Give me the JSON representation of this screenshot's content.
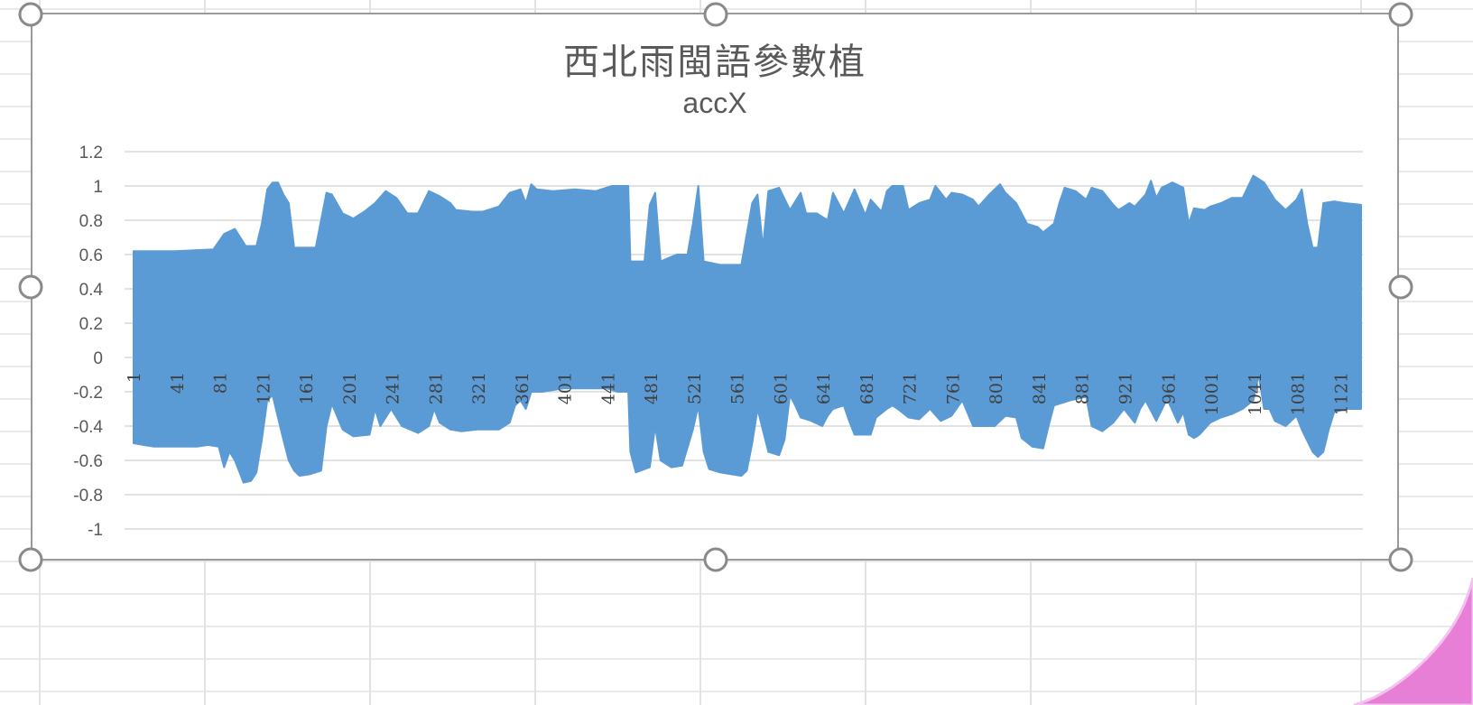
{
  "chart_data": {
    "type": "area",
    "title": "西北雨閩語參數植",
    "subtitle": "accX",
    "xlabel": "",
    "ylabel": "",
    "ylim": [
      -1,
      1.2
    ],
    "y_ticks": [
      "1.2",
      "1",
      "0.8",
      "0.6",
      "0.4",
      "0.2",
      "0",
      "-0.2",
      "-0.4",
      "-0.6",
      "-0.8",
      "-1"
    ],
    "y_tick_values": [
      1.2,
      1,
      0.8,
      0.6,
      0.4,
      0.2,
      0,
      -0.2,
      -0.4,
      -0.6,
      -0.8,
      -1
    ],
    "x_range": [
      1,
      1140
    ],
    "x_ticks": [
      "1",
      "41",
      "81",
      "121",
      "161",
      "201",
      "241",
      "281",
      "321",
      "361",
      "401",
      "441",
      "481",
      "521",
      "561",
      "601",
      "641",
      "681",
      "721",
      "761",
      "801",
      "841",
      "881",
      "921",
      "961",
      "1001",
      "1041",
      "1081",
      "1121"
    ],
    "grid": "horizontal",
    "legend": "none",
    "series": [
      {
        "color": "#5b9bd5",
        "upper_envelope": [
          [
            1,
            0.62
          ],
          [
            40,
            0.62
          ],
          [
            75,
            0.63
          ],
          [
            85,
            0.72
          ],
          [
            95,
            0.75
          ],
          [
            105,
            0.65
          ],
          [
            115,
            0.65
          ],
          [
            120,
            0.78
          ],
          [
            125,
            0.98
          ],
          [
            130,
            1.02
          ],
          [
            135,
            1.02
          ],
          [
            140,
            0.95
          ],
          [
            145,
            0.9
          ],
          [
            150,
            0.64
          ],
          [
            170,
            0.64
          ],
          [
            180,
            0.96
          ],
          [
            185,
            0.95
          ],
          [
            195,
            0.84
          ],
          [
            205,
            0.81
          ],
          [
            215,
            0.85
          ],
          [
            225,
            0.9
          ],
          [
            235,
            0.97
          ],
          [
            245,
            0.93
          ],
          [
            255,
            0.84
          ],
          [
            265,
            0.84
          ],
          [
            275,
            0.97
          ],
          [
            285,
            0.94
          ],
          [
            295,
            0.9
          ],
          [
            300,
            0.86
          ],
          [
            315,
            0.85
          ],
          [
            325,
            0.85
          ],
          [
            340,
            0.88
          ],
          [
            350,
            0.96
          ],
          [
            360,
            0.98
          ],
          [
            365,
            0.9
          ],
          [
            370,
            1.01
          ],
          [
            375,
            0.98
          ],
          [
            390,
            0.97
          ],
          [
            410,
            0.98
          ],
          [
            430,
            0.97
          ],
          [
            445,
            1.0
          ],
          [
            460,
            1.0
          ],
          [
            462,
            0.56
          ],
          [
            475,
            0.56
          ],
          [
            480,
            0.89
          ],
          [
            485,
            0.96
          ],
          [
            490,
            0.56
          ],
          [
            505,
            0.6
          ],
          [
            515,
            0.6
          ],
          [
            520,
            0.78
          ],
          [
            525,
            1.0
          ],
          [
            530,
            0.56
          ],
          [
            545,
            0.54
          ],
          [
            560,
            0.54
          ],
          [
            565,
            0.54
          ],
          [
            575,
            0.9
          ],
          [
            580,
            0.95
          ],
          [
            585,
            0.64
          ],
          [
            590,
            0.97
          ],
          [
            600,
            0.99
          ],
          [
            610,
            0.86
          ],
          [
            620,
            0.96
          ],
          [
            625,
            0.84
          ],
          [
            635,
            0.84
          ],
          [
            640,
            0.82
          ],
          [
            645,
            0.8
          ],
          [
            650,
            0.96
          ],
          [
            660,
            0.84
          ],
          [
            670,
            0.98
          ],
          [
            680,
            0.83
          ],
          [
            685,
            0.92
          ],
          [
            695,
            0.85
          ],
          [
            700,
            0.97
          ],
          [
            705,
            1.0
          ],
          [
            715,
            1.0
          ],
          [
            720,
            0.86
          ],
          [
            730,
            0.9
          ],
          [
            740,
            0.92
          ],
          [
            745,
            1.0
          ],
          [
            755,
            0.92
          ],
          [
            760,
            0.96
          ],
          [
            770,
            0.95
          ],
          [
            780,
            0.92
          ],
          [
            785,
            0.88
          ],
          [
            795,
            0.95
          ],
          [
            805,
            1.01
          ],
          [
            810,
            0.96
          ],
          [
            820,
            0.9
          ],
          [
            830,
            0.78
          ],
          [
            840,
            0.76
          ],
          [
            845,
            0.73
          ],
          [
            855,
            0.78
          ],
          [
            860,
            0.9
          ],
          [
            865,
            0.99
          ],
          [
            875,
            0.97
          ],
          [
            885,
            0.92
          ],
          [
            890,
            0.99
          ],
          [
            900,
            0.97
          ],
          [
            910,
            0.89
          ],
          [
            915,
            0.86
          ],
          [
            925,
            0.9
          ],
          [
            930,
            0.88
          ],
          [
            940,
            0.95
          ],
          [
            945,
            1.03
          ],
          [
            950,
            0.93
          ],
          [
            955,
            0.99
          ],
          [
            965,
            1.02
          ],
          [
            975,
            0.99
          ],
          [
            980,
            0.78
          ],
          [
            985,
            0.87
          ],
          [
            995,
            0.86
          ],
          [
            1000,
            0.88
          ],
          [
            1010,
            0.9
          ],
          [
            1020,
            0.93
          ],
          [
            1030,
            0.93
          ],
          [
            1040,
            1.06
          ],
          [
            1050,
            1.02
          ],
          [
            1060,
            0.92
          ],
          [
            1070,
            0.86
          ],
          [
            1080,
            0.92
          ],
          [
            1085,
            0.98
          ],
          [
            1090,
            0.78
          ],
          [
            1095,
            0.64
          ],
          [
            1100,
            0.64
          ],
          [
            1105,
            0.9
          ],
          [
            1115,
            0.91
          ],
          [
            1125,
            0.9
          ],
          [
            1140,
            0.89
          ]
        ],
        "lower_envelope": [
          [
            1,
            -0.5
          ],
          [
            10,
            -0.51
          ],
          [
            20,
            -0.52
          ],
          [
            40,
            -0.52
          ],
          [
            60,
            -0.52
          ],
          [
            70,
            -0.51
          ],
          [
            80,
            -0.52
          ],
          [
            85,
            -0.64
          ],
          [
            90,
            -0.55
          ],
          [
            95,
            -0.6
          ],
          [
            100,
            -0.68
          ],
          [
            103,
            -0.73
          ],
          [
            110,
            -0.72
          ],
          [
            115,
            -0.67
          ],
          [
            120,
            -0.48
          ],
          [
            125,
            -0.25
          ],
          [
            130,
            -0.22
          ],
          [
            140,
            -0.48
          ],
          [
            145,
            -0.6
          ],
          [
            150,
            -0.66
          ],
          [
            155,
            -0.69
          ],
          [
            165,
            -0.68
          ],
          [
            175,
            -0.66
          ],
          [
            180,
            -0.4
          ],
          [
            185,
            -0.27
          ],
          [
            195,
            -0.42
          ],
          [
            205,
            -0.46
          ],
          [
            220,
            -0.45
          ],
          [
            225,
            -0.3
          ],
          [
            230,
            -0.4
          ],
          [
            240,
            -0.3
          ],
          [
            250,
            -0.4
          ],
          [
            265,
            -0.44
          ],
          [
            275,
            -0.4
          ],
          [
            280,
            -0.3
          ],
          [
            285,
            -0.38
          ],
          [
            295,
            -0.42
          ],
          [
            305,
            -0.43
          ],
          [
            320,
            -0.42
          ],
          [
            340,
            -0.42
          ],
          [
            350,
            -0.38
          ],
          [
            355,
            -0.28
          ],
          [
            360,
            -0.25
          ],
          [
            365,
            -0.3
          ],
          [
            370,
            -0.2
          ],
          [
            380,
            -0.2
          ],
          [
            400,
            -0.18
          ],
          [
            420,
            -0.18
          ],
          [
            440,
            -0.18
          ],
          [
            450,
            -0.2
          ],
          [
            460,
            -0.2
          ],
          [
            462,
            -0.55
          ],
          [
            467,
            -0.67
          ],
          [
            480,
            -0.64
          ],
          [
            485,
            -0.4
          ],
          [
            490,
            -0.6
          ],
          [
            500,
            -0.64
          ],
          [
            510,
            -0.63
          ],
          [
            520,
            -0.42
          ],
          [
            525,
            -0.28
          ],
          [
            530,
            -0.55
          ],
          [
            535,
            -0.65
          ],
          [
            545,
            -0.67
          ],
          [
            555,
            -0.68
          ],
          [
            565,
            -0.69
          ],
          [
            570,
            -0.66
          ],
          [
            575,
            -0.5
          ],
          [
            580,
            -0.3
          ],
          [
            590,
            -0.55
          ],
          [
            600,
            -0.57
          ],
          [
            605,
            -0.48
          ],
          [
            610,
            -0.22
          ],
          [
            615,
            -0.28
          ],
          [
            620,
            -0.35
          ],
          [
            630,
            -0.37
          ],
          [
            640,
            -0.4
          ],
          [
            645,
            -0.34
          ],
          [
            650,
            -0.3
          ],
          [
            660,
            -0.28
          ],
          [
            665,
            -0.37
          ],
          [
            670,
            -0.45
          ],
          [
            685,
            -0.45
          ],
          [
            690,
            -0.35
          ],
          [
            700,
            -0.3
          ],
          [
            705,
            -0.28
          ],
          [
            710,
            -0.3
          ],
          [
            720,
            -0.35
          ],
          [
            730,
            -0.36
          ],
          [
            740,
            -0.3
          ],
          [
            750,
            -0.37
          ],
          [
            760,
            -0.34
          ],
          [
            770,
            -0.25
          ],
          [
            780,
            -0.4
          ],
          [
            790,
            -0.4
          ],
          [
            800,
            -0.4
          ],
          [
            810,
            -0.34
          ],
          [
            820,
            -0.35
          ],
          [
            825,
            -0.47
          ],
          [
            835,
            -0.52
          ],
          [
            845,
            -0.53
          ],
          [
            850,
            -0.4
          ],
          [
            855,
            -0.28
          ],
          [
            870,
            -0.25
          ],
          [
            885,
            -0.23
          ],
          [
            890,
            -0.4
          ],
          [
            900,
            -0.43
          ],
          [
            910,
            -0.38
          ],
          [
            920,
            -0.3
          ],
          [
            930,
            -0.38
          ],
          [
            935,
            -0.3
          ],
          [
            940,
            -0.25
          ],
          [
            950,
            -0.37
          ],
          [
            960,
            -0.24
          ],
          [
            970,
            -0.38
          ],
          [
            975,
            -0.32
          ],
          [
            980,
            -0.45
          ],
          [
            985,
            -0.47
          ],
          [
            990,
            -0.45
          ],
          [
            1000,
            -0.38
          ],
          [
            1010,
            -0.35
          ],
          [
            1020,
            -0.33
          ],
          [
            1030,
            -0.3
          ],
          [
            1040,
            -0.25
          ],
          [
            1045,
            -0.1
          ],
          [
            1050,
            -0.3
          ],
          [
            1055,
            -0.3
          ],
          [
            1060,
            -0.37
          ],
          [
            1070,
            -0.4
          ],
          [
            1080,
            -0.34
          ],
          [
            1085,
            -0.42
          ],
          [
            1095,
            -0.55
          ],
          [
            1100,
            -0.58
          ],
          [
            1105,
            -0.55
          ],
          [
            1110,
            -0.42
          ],
          [
            1115,
            -0.32
          ],
          [
            1125,
            -0.3
          ],
          [
            1140,
            -0.3
          ]
        ]
      }
    ]
  }
}
